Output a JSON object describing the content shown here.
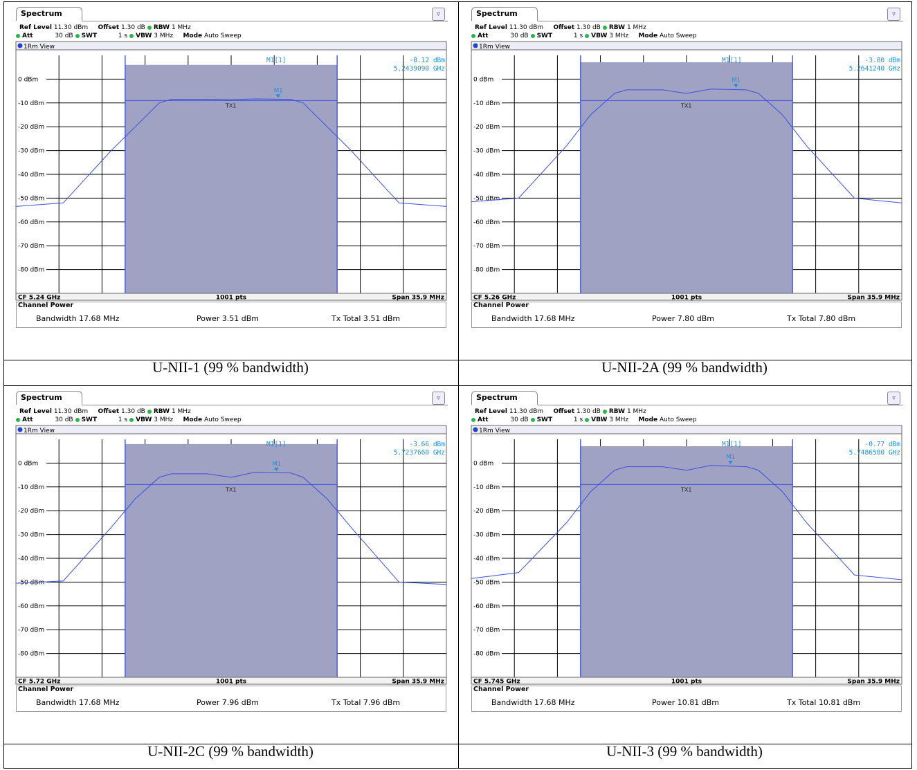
{
  "panels": [
    {
      "tab_label": "Spectrum",
      "hdr": {
        "ref_level_label": "Ref Level",
        "ref_level": "11.30 dBm",
        "offset_label": "Offset",
        "offset": "1.30 dB",
        "rbw_label": "RBW",
        "rbw": "1 MHz",
        "att_label": "Att",
        "att": "30 dB",
        "swt_label": "SWT",
        "swt": "1 s",
        "vbw_label": "VBW",
        "vbw": "3 MHz",
        "mode_label": "Mode",
        "mode": "Auto Sweep",
        "view": "1Rm View"
      },
      "marker_label": "M1[1]",
      "marker_value": "-8.12 dBm",
      "marker_freq": "5.2439090 GHz",
      "marker_tag": "M1",
      "tx_tag": "TX1",
      "cf": "CF 5.24 GHz",
      "pts": "1001 pts",
      "span": "Span 35.9 MHz",
      "cp_title": "Channel Power",
      "bandwidth": "Bandwidth  17.68 MHz",
      "power": "Power  3.51 dBm",
      "txtotal": "Tx Total  3.51 dBm",
      "caption": "U-NII-1 (99 % bandwidth)"
    },
    {
      "tab_label": "Spectrum",
      "hdr": {
        "ref_level_label": "Ref Level",
        "ref_level": "11.30 dBm",
        "offset_label": "Offset",
        "offset": "1.30 dB",
        "rbw_label": "RBW",
        "rbw": "1 MHz",
        "att_label": "Att",
        "att": "30 dB",
        "swt_label": "SWT",
        "swt": "1 s",
        "vbw_label": "VBW",
        "vbw": "3 MHz",
        "mode_label": "Mode",
        "mode": "Auto Sweep",
        "view": "1Rm View"
      },
      "marker_label": "M1[1]",
      "marker_value": "-3.80 dBm",
      "marker_freq": "5.2641240 GHz",
      "marker_tag": "M1",
      "tx_tag": "TX1",
      "cf": "CF 5.26 GHz",
      "pts": "1001 pts",
      "span": "Span 35.9 MHz",
      "cp_title": "Channel Power",
      "bandwidth": "Bandwidth  17.68 MHz",
      "power": "Power  7.80 dBm",
      "txtotal": "Tx Total  7.80 dBm",
      "caption": "U-NII-2A (99 % bandwidth)"
    },
    {
      "tab_label": "Spectrum",
      "hdr": {
        "ref_level_label": "Ref Level",
        "ref_level": "11.30 dBm",
        "offset_label": "Offset",
        "offset": "1.30 dB",
        "rbw_label": "RBW",
        "rbw": "1 MHz",
        "att_label": "Att",
        "att": "30 dB",
        "swt_label": "SWT",
        "swt": "1 s",
        "vbw_label": "VBW",
        "vbw": "3 MHz",
        "mode_label": "Mode",
        "mode": "Auto Sweep",
        "view": "1Rm View"
      },
      "marker_label": "M1[1]",
      "marker_value": "-3.66 dBm",
      "marker_freq": "5.7237660 GHz",
      "marker_tag": "M1",
      "tx_tag": "TX1",
      "cf": "CF 5.72 GHz",
      "pts": "1001 pts",
      "span": "Span 35.9 MHz",
      "cp_title": "Channel Power",
      "bandwidth": "Bandwidth  17.68 MHz",
      "power": "Power  7.96 dBm",
      "txtotal": "Tx Total  7.96 dBm",
      "caption": "U-NII-2C (99 % bandwidth)"
    },
    {
      "tab_label": "Spectrum",
      "hdr": {
        "ref_level_label": "Ref Level",
        "ref_level": "11.30 dBm",
        "offset_label": "Offset",
        "offset": "1.30 dB",
        "rbw_label": "RBW",
        "rbw": "1 MHz",
        "att_label": "Att",
        "att": "30 dB",
        "swt_label": "SWT",
        "swt": "1 s",
        "vbw_label": "VBW",
        "vbw": "3 MHz",
        "mode_label": "Mode",
        "mode": "Auto Sweep",
        "view": "1Rm View"
      },
      "marker_label": "M1[1]",
      "marker_value": "-0.77 dBm",
      "marker_freq": "5.7486580 GHz",
      "marker_tag": "M1",
      "tx_tag": "TX1",
      "cf": "CF 5.745 GHz",
      "pts": "1001 pts",
      "span": "Span 35.9 MHz",
      "cp_title": "Channel Power",
      "bandwidth": "Bandwidth  17.68 MHz",
      "power": "Power  10.81 dBm",
      "txtotal": "Tx Total  10.81 dBm",
      "caption": "U-NII-3 (99 % bandwidth)"
    }
  ],
  "chart_data": [
    {
      "type": "line",
      "y_ticks": [
        "0 dBm",
        "-10 dBm",
        "-20 dBm",
        "-30 dBm",
        "-40 dBm",
        "-50 dBm",
        "-60 dBm",
        "-70 dBm",
        "-80 dBm"
      ],
      "ylim": [
        -90,
        10
      ],
      "x_mhz": [
        -17.95,
        -14,
        -10,
        -8,
        -6,
        -5,
        -2,
        0,
        2,
        5,
        6,
        8,
        10,
        14,
        17.95
      ],
      "y_dbm": [
        -53.5,
        -52,
        -30,
        -20,
        -10,
        -8.5,
        -8.5,
        -8.6,
        -8.3,
        -8.5,
        -10,
        -20,
        -30,
        -52,
        -53.5
      ],
      "marker": {
        "x_mhz": 3.91,
        "y_dbm": -8.12
      },
      "tx1_dbm": -9,
      "channel_bw_mhz": 17.68
    },
    {
      "type": "line",
      "y_ticks": [
        "0 dBm",
        "-10 dBm",
        "-20 dBm",
        "-30 dBm",
        "-40 dBm",
        "-50 dBm",
        "-60 dBm",
        "-70 dBm",
        "-80 dBm"
      ],
      "ylim": [
        -90,
        10
      ],
      "x_mhz": [
        -17.95,
        -14,
        -10,
        -8,
        -6,
        -5,
        -2,
        0,
        2,
        5,
        6,
        8,
        10,
        14,
        17.95
      ],
      "y_dbm": [
        -51.5,
        -50,
        -28,
        -15,
        -6,
        -4.5,
        -4.5,
        -6,
        -4.2,
        -4.5,
        -6,
        -15,
        -28,
        -50,
        -52
      ],
      "marker": {
        "x_mhz": 4.12,
        "y_dbm": -3.8
      },
      "tx1_dbm": -9,
      "channel_bw_mhz": 17.68
    },
    {
      "type": "line",
      "y_ticks": [
        "0 dBm",
        "-10 dBm",
        "-20 dBm",
        "-30 dBm",
        "-40 dBm",
        "-50 dBm",
        "-60 dBm",
        "-70 dBm",
        "-80 dBm"
      ],
      "ylim": [
        -90,
        10
      ],
      "x_mhz": [
        -17.95,
        -14,
        -10,
        -8,
        -6,
        -5,
        -2,
        0,
        2,
        5,
        6,
        8,
        10,
        14,
        17.95
      ],
      "y_dbm": [
        -50.5,
        -49.5,
        -27,
        -15,
        -6,
        -4.5,
        -4.5,
        -6,
        -3.8,
        -4.2,
        -6,
        -15,
        -27,
        -50,
        -51
      ],
      "marker": {
        "x_mhz": 3.77,
        "y_dbm": -3.66
      },
      "tx1_dbm": -9,
      "channel_bw_mhz": 17.68
    },
    {
      "type": "line",
      "y_ticks": [
        "0 dBm",
        "-10 dBm",
        "-20 dBm",
        "-30 dBm",
        "-40 dBm",
        "-50 dBm",
        "-60 dBm",
        "-70 dBm",
        "-80 dBm"
      ],
      "ylim": [
        -90,
        10
      ],
      "x_mhz": [
        -17.95,
        -14,
        -10,
        -8,
        -6,
        -5,
        -2,
        0,
        2,
        5,
        6,
        8,
        10,
        14,
        17.95
      ],
      "y_dbm": [
        -48.5,
        -46,
        -25,
        -12,
        -3,
        -1.5,
        -1.5,
        -3,
        -1,
        -1.5,
        -3,
        -12,
        -25,
        -47,
        -49
      ],
      "marker": {
        "x_mhz": 3.66,
        "y_dbm": -0.77
      },
      "tx1_dbm": -9,
      "channel_bw_mhz": 17.68
    }
  ],
  "colors": {
    "trace": "#3a4fdf",
    "fill": "#a0a2c4",
    "grid": "#000000",
    "marker": "#1e8fd8",
    "band_edge": "#4a5de0"
  }
}
